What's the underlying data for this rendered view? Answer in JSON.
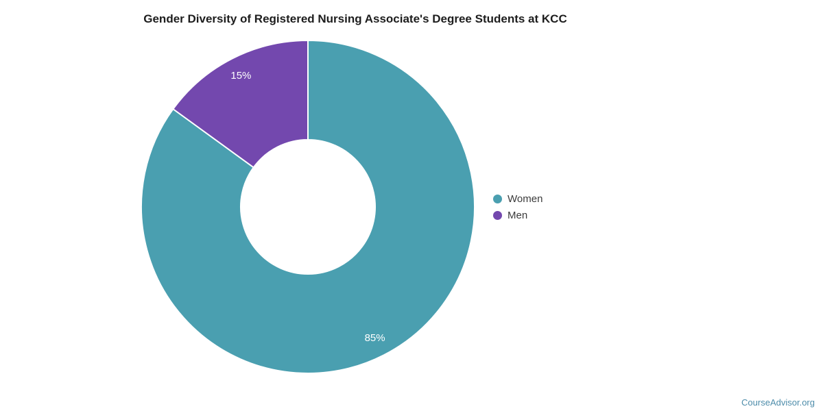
{
  "watermark": "CourseAdvisor.org",
  "colors": {
    "background": "#ffffff",
    "title_text": "#1d1d1d",
    "legend_text": "#3a3a3a",
    "slice_label_text": "#ffffff",
    "slice_border": "#ffffff",
    "watermark_text": "#4d8caa",
    "women": "#4a9fb0",
    "men": "#7348ae"
  },
  "chart_data": {
    "type": "pie",
    "title": "Gender Diversity of Registered Nursing Associate's Degree Students at KCC",
    "labels": [
      "Women",
      "Men"
    ],
    "values": [
      85,
      15
    ],
    "slice_labels": [
      "85%",
      "15%"
    ],
    "colors": [
      "#4a9fb0",
      "#7348ae"
    ],
    "hole_ratio": 0.4,
    "start_angle_deg": 0,
    "direction": "clockwise",
    "legend_position": "right",
    "legend": [
      {
        "label": "Women",
        "color": "#4a9fb0"
      },
      {
        "label": "Men",
        "color": "#7348ae"
      }
    ]
  }
}
